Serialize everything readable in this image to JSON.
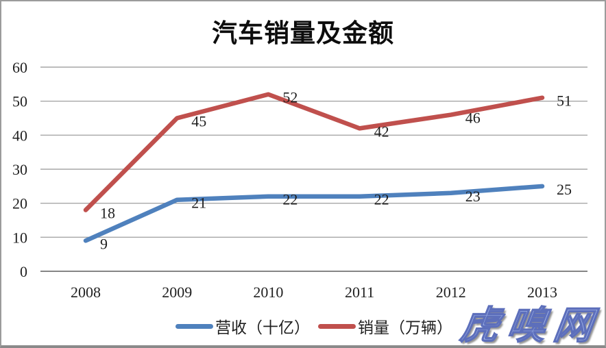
{
  "chart_data": {
    "type": "line",
    "title": "汽车销量及金额",
    "categories": [
      "2008",
      "2009",
      "2010",
      "2011",
      "2012",
      "2013"
    ],
    "series": [
      {
        "name": "营收（十亿）",
        "values": [
          9,
          21,
          22,
          22,
          23,
          25
        ],
        "color": "#4F81BD"
      },
      {
        "name": "销量（万辆）",
        "values": [
          18,
          45,
          52,
          42,
          46,
          51
        ],
        "color": "#C0504D"
      }
    ],
    "ylim": [
      0,
      60
    ],
    "yticks": [
      0,
      10,
      20,
      30,
      40,
      50,
      60
    ],
    "grid": true,
    "data_labels": true,
    "legend_position": "bottom",
    "xlabel": "",
    "ylabel": ""
  },
  "watermark": {
    "text": "虎嗅网",
    "color": "#a3b7ea"
  },
  "colors": {
    "gridline": "#a6a6a6",
    "axis": "#858585",
    "text": "#1f1f1f",
    "series_blue": "#4F81BD",
    "series_red": "#C0504D",
    "frame_border": "#9b9b9b"
  }
}
